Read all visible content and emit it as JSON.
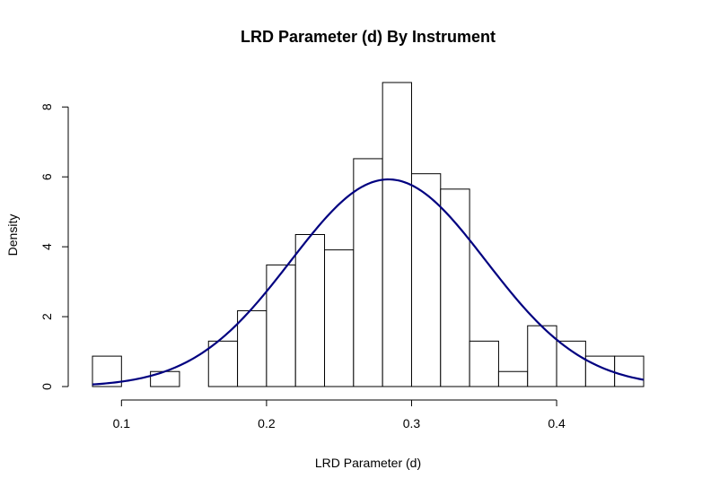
{
  "chart_data": {
    "type": "bar",
    "title": "LRD Parameter (d) By Instrument",
    "xlabel": "LRD Parameter (d)",
    "ylabel": "Density",
    "bins": [
      {
        "x0": 0.08,
        "x1": 0.1,
        "density": 0.87
      },
      {
        "x0": 0.1,
        "x1": 0.12,
        "density": 0.0
      },
      {
        "x0": 0.12,
        "x1": 0.14,
        "density": 0.43
      },
      {
        "x0": 0.14,
        "x1": 0.16,
        "density": 0.0
      },
      {
        "x0": 0.16,
        "x1": 0.18,
        "density": 1.3
      },
      {
        "x0": 0.18,
        "x1": 0.2,
        "density": 2.17
      },
      {
        "x0": 0.2,
        "x1": 0.22,
        "density": 3.48
      },
      {
        "x0": 0.22,
        "x1": 0.24,
        "density": 4.35
      },
      {
        "x0": 0.24,
        "x1": 0.26,
        "density": 3.91
      },
      {
        "x0": 0.26,
        "x1": 0.28,
        "density": 6.52
      },
      {
        "x0": 0.28,
        "x1": 0.3,
        "density": 8.7
      },
      {
        "x0": 0.3,
        "x1": 0.32,
        "density": 6.09
      },
      {
        "x0": 0.32,
        "x1": 0.34,
        "density": 5.65
      },
      {
        "x0": 0.34,
        "x1": 0.36,
        "density": 1.3
      },
      {
        "x0": 0.36,
        "x1": 0.38,
        "density": 0.43
      },
      {
        "x0": 0.38,
        "x1": 0.4,
        "density": 1.74
      },
      {
        "x0": 0.4,
        "x1": 0.42,
        "density": 1.3
      },
      {
        "x0": 0.42,
        "x1": 0.44,
        "density": 0.87
      },
      {
        "x0": 0.44,
        "x1": 0.46,
        "density": 0.87
      }
    ],
    "density_curve": {
      "kind": "normal",
      "mean": 0.284,
      "sd": 0.0673,
      "x_range": [
        0.08,
        0.46
      ],
      "color": "#000080"
    },
    "xlim": [
      0.08,
      0.46
    ],
    "ylim": [
      0,
      8.7
    ],
    "x_ticks": [
      0.1,
      0.2,
      0.3,
      0.4
    ],
    "x_tick_labels": [
      "0.1",
      "0.2",
      "0.3",
      "0.4"
    ],
    "y_ticks": [
      0,
      2,
      4,
      6,
      8
    ],
    "y_tick_labels": [
      "0",
      "2",
      "4",
      "6",
      "8"
    ],
    "grid": false,
    "colors": {
      "bar_fill": "#ffffff",
      "bar_stroke": "#000000",
      "curve": "#000080"
    }
  }
}
